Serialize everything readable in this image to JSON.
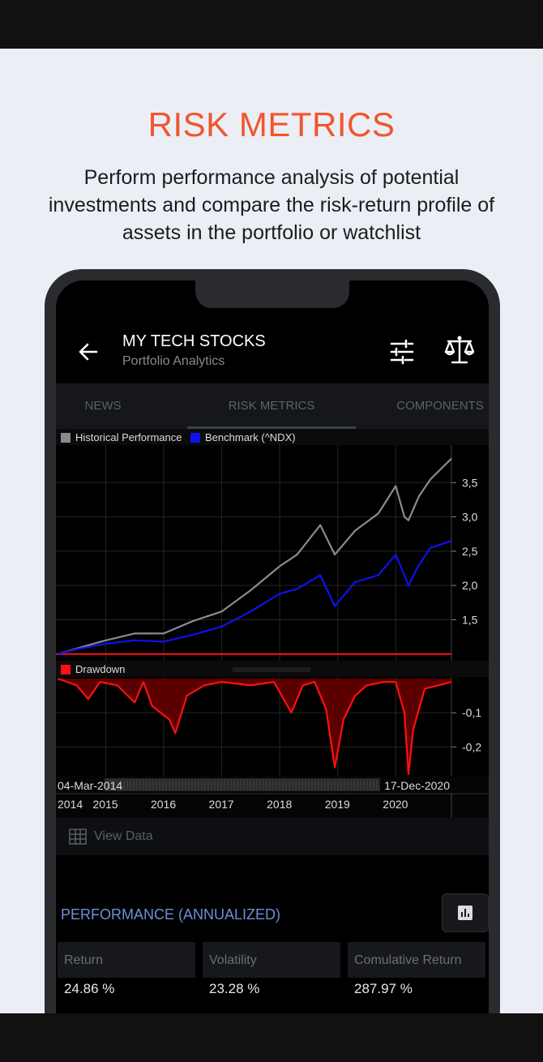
{
  "promo": {
    "title": "RISK METRICS",
    "subtitle": "Perform performance analysis of potential investments and compare the risk-return profile of assets in the portfolio or watchlist"
  },
  "appbar": {
    "title": "MY TECH STOCKS",
    "subtitle": "Portfolio Analytics",
    "icons": [
      "back-arrow-icon",
      "filter-sliders-icon",
      "scale-icon"
    ]
  },
  "tabs": [
    {
      "label": "NEWS",
      "active": false
    },
    {
      "label": "RISK METRICS",
      "active": true
    },
    {
      "label": "COMPONENTS",
      "active": false
    }
  ],
  "chart_data": [
    {
      "type": "line",
      "series": [
        {
          "name": "Historical Performance",
          "color": "#8a8a93",
          "x": [
            2014.17,
            2014.5,
            2015.0,
            2015.5,
            2016.0,
            2016.5,
            2017.0,
            2017.5,
            2018.0,
            2018.3,
            2018.7,
            2018.95,
            2019.3,
            2019.7,
            2020.0,
            2020.15,
            2020.22,
            2020.4,
            2020.6,
            2020.96
          ],
          "values": [
            1.0,
            1.08,
            1.2,
            1.3,
            1.3,
            1.48,
            1.62,
            1.93,
            2.28,
            2.45,
            2.88,
            2.45,
            2.8,
            3.05,
            3.45,
            3.0,
            2.95,
            3.3,
            3.55,
            3.85
          ]
        },
        {
          "name": "Benchmark (^NDX)",
          "color": "#1010ee",
          "x": [
            2014.17,
            2014.5,
            2015.0,
            2015.5,
            2016.0,
            2016.5,
            2017.0,
            2017.5,
            2018.0,
            2018.3,
            2018.7,
            2018.95,
            2019.3,
            2019.7,
            2020.0,
            2020.15,
            2020.22,
            2020.4,
            2020.6,
            2020.96
          ],
          "values": [
            1.0,
            1.07,
            1.15,
            1.2,
            1.18,
            1.28,
            1.4,
            1.62,
            1.88,
            1.95,
            2.15,
            1.7,
            2.05,
            2.15,
            2.45,
            2.15,
            2.0,
            2.3,
            2.55,
            2.65
          ]
        }
      ],
      "ylim": [
        0.95,
        4.0
      ],
      "yticks": [
        "3,5",
        "3,0",
        "2,5",
        "2,0",
        "1,5"
      ],
      "legend": "top-left",
      "grid": true
    },
    {
      "type": "area",
      "series": [
        {
          "name": "Drawdown",
          "color": "#ff1010",
          "x": [
            2014.17,
            2014.5,
            2014.7,
            2014.9,
            2015.2,
            2015.5,
            2015.65,
            2015.8,
            2016.1,
            2016.2,
            2016.4,
            2016.7,
            2017.0,
            2017.5,
            2017.9,
            2018.1,
            2018.2,
            2018.4,
            2018.6,
            2018.8,
            2018.95,
            2019.1,
            2019.3,
            2019.5,
            2019.8,
            2020.0,
            2020.15,
            2020.22,
            2020.3,
            2020.5,
            2020.96
          ],
          "values": [
            0,
            -0.02,
            -0.06,
            -0.01,
            -0.02,
            -0.07,
            -0.01,
            -0.08,
            -0.12,
            -0.16,
            -0.05,
            -0.02,
            -0.01,
            -0.02,
            -0.01,
            -0.07,
            -0.1,
            -0.02,
            -0.01,
            -0.09,
            -0.26,
            -0.12,
            -0.05,
            -0.02,
            -0.01,
            -0.01,
            -0.1,
            -0.28,
            -0.15,
            -0.03,
            -0.01
          ]
        }
      ],
      "ylim": [
        -0.28,
        0
      ],
      "yticks": [
        "-0,1",
        "-0,2"
      ]
    }
  ],
  "range": {
    "start": "04-Mar-2014",
    "end": "17-Dec-2020"
  },
  "years": [
    "2014",
    "2015",
    "2016",
    "2017",
    "2018",
    "2019",
    "2020"
  ],
  "view_data": {
    "label": "View Data"
  },
  "performance": {
    "title": "PERFORMANCE (ANNUALIZED)",
    "metrics": [
      {
        "label": "Return",
        "value": "24.86 %"
      },
      {
        "label": "Volatility",
        "value": "23.28 %"
      },
      {
        "label": "Comulative Return",
        "value": "287.97 %"
      }
    ]
  },
  "colors": {
    "accent": "#f0562d",
    "historical": "#8a8a93",
    "benchmark": "#1010ee",
    "drawdown": "#ff1010",
    "section_title": "#6f8fd8"
  }
}
